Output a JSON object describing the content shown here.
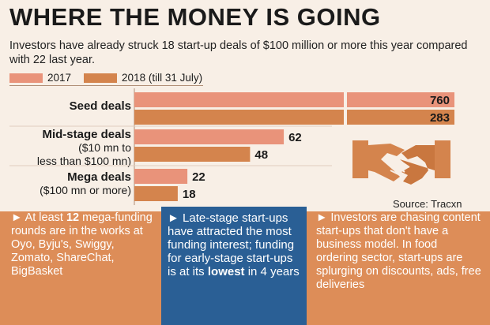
{
  "title": "WHERE THE MONEY IS GOING",
  "subtitle": "Investors have already struck 18 start-up deals of $100 million or more this year compared with 22 last year.",
  "legend": [
    {
      "label": "2017",
      "color": "#e9937a"
    },
    {
      "label": "2018 (till 31 July)",
      "color": "#d4844d"
    }
  ],
  "chart_data": {
    "type": "bar",
    "orientation": "horizontal",
    "categories": [
      {
        "name": "Seed deals",
        "sub": []
      },
      {
        "name": "Mid-stage deals",
        "sub": [
          "($10 mn to",
          "less than $100 mn)"
        ]
      },
      {
        "name": "Mega deals",
        "sub": [
          "($100 mn or more)"
        ]
      }
    ],
    "series": [
      {
        "name": "2017",
        "values": [
          760,
          62,
          22
        ],
        "color": "#e9937a"
      },
      {
        "name": "2018 (till 31 July)",
        "values": [
          283,
          48,
          18
        ],
        "color": "#d4844d"
      }
    ],
    "axis_break": true
  },
  "source": "Source: Tracxn",
  "left_box": {
    "prefix": "► At least ",
    "highlight": "12",
    "rest": " mega-funding rounds are in the works at Oyo, Byju's, Swiggy, Zomato, ShareChat, BigBasket"
  },
  "center_box": {
    "before": "► Late-stage start-ups have attracted the most funding interest; funding for early-stage start-ups is at its ",
    "emph": "lowest",
    "after": " in 4 years"
  },
  "right_box": {
    "text": "► Investors are chasing content start-ups that don't have a business model. In food ordering sector, start-ups are splurging on discounts, ads, free deliveries"
  },
  "icon": "handshake-icon"
}
